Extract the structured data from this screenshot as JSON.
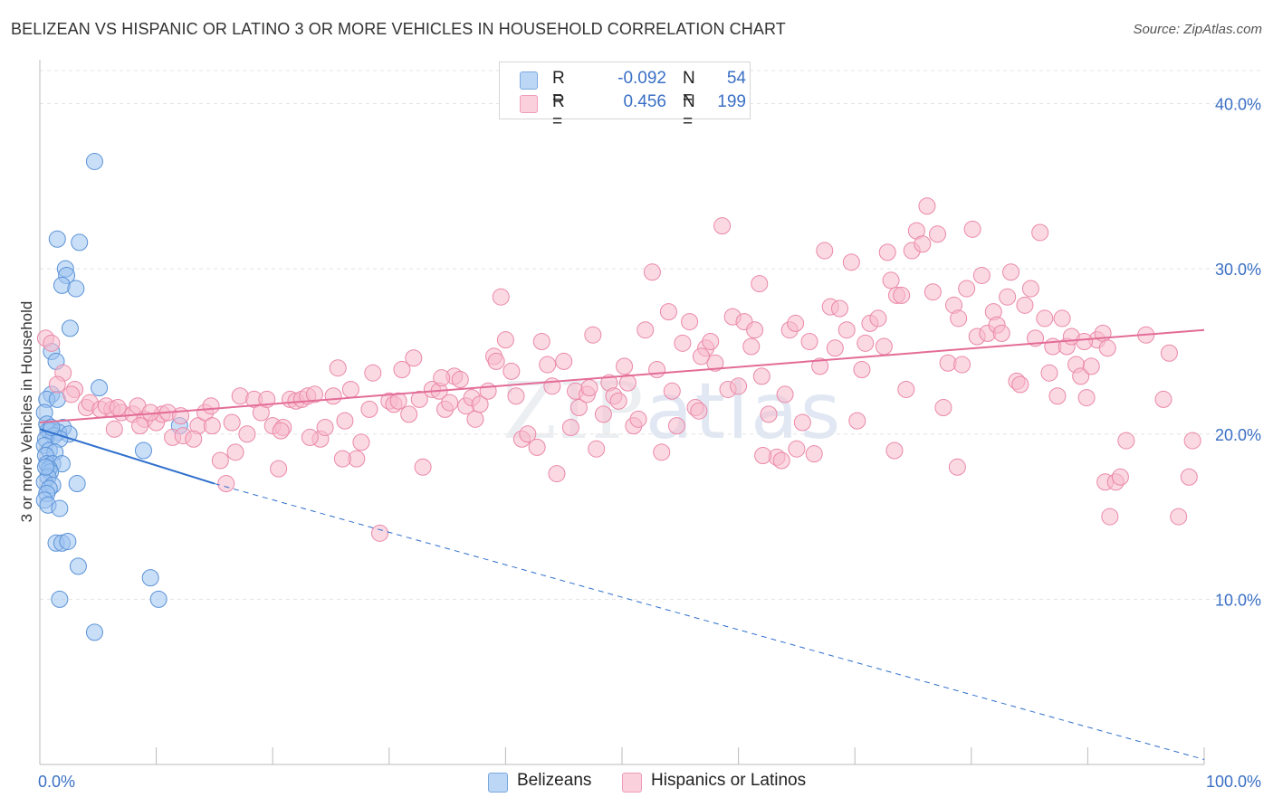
{
  "title": "BELIZEAN VS HISPANIC OR LATINO 3 OR MORE VEHICLES IN HOUSEHOLD CORRELATION CHART",
  "source": "Source: ZipAtlas.com",
  "watermark": {
    "zip": "ZIP",
    "atlas": "atlas"
  },
  "legend": {
    "rows": [
      {
        "r_label": "R =",
        "r_value": "-0.092",
        "n_label": "N =",
        "n_value": "54",
        "color": "#9dc3f0"
      },
      {
        "r_label": "R =",
        "r_value": "0.456",
        "n_label": "N =",
        "n_value": "199",
        "color": "#f7b9cc"
      }
    ]
  },
  "bottom_legend": [
    {
      "label": "Belizeans",
      "color": "#9dc3f0"
    },
    {
      "label": "Hispanics or Latinos",
      "color": "#f7b9cc"
    }
  ],
  "chart_data": {
    "type": "scatter",
    "title": "BELIZEAN VS HISPANIC OR LATINO 3 OR MORE VEHICLES IN HOUSEHOLD CORRELATION CHART",
    "xlabel": "",
    "ylabel": "3 or more Vehicles in Household",
    "xlim": [
      0,
      100
    ],
    "ylim": [
      0,
      42
    ],
    "x_tick_labels": [
      {
        "value": 0,
        "label": "0.0%"
      },
      {
        "value": 100,
        "label": "100.0%"
      }
    ],
    "y_tick_labels": [
      {
        "value": 10,
        "label": "10.0%"
      },
      {
        "value": 20,
        "label": "20.0%"
      },
      {
        "value": 30,
        "label": "30.0%"
      },
      {
        "value": 40,
        "label": "40.0%"
      }
    ],
    "series": [
      {
        "name": "Belizeans",
        "color": "#9dc3f0",
        "stroke": "#5b93d8",
        "r": -0.092,
        "n": 54,
        "trend": {
          "x0": 0,
          "y0": 20.3,
          "x1": 15,
          "y1": 17.0,
          "dash_to_x": 100,
          "dash_to_y": 0.3,
          "color": "#2f6fcc"
        },
        "points": [
          [
            4.7,
            36.5
          ],
          [
            1.5,
            31.8
          ],
          [
            3.4,
            31.6
          ],
          [
            2.2,
            30.0
          ],
          [
            2.3,
            29.6
          ],
          [
            1.9,
            29.0
          ],
          [
            3.1,
            28.8
          ],
          [
            2.6,
            26.4
          ],
          [
            1.0,
            25.0
          ],
          [
            1.4,
            24.4
          ],
          [
            5.1,
            22.8
          ],
          [
            1.0,
            22.4
          ],
          [
            0.6,
            22.1
          ],
          [
            1.5,
            22.1
          ],
          [
            0.4,
            21.3
          ],
          [
            0.6,
            20.6
          ],
          [
            12.0,
            20.5
          ],
          [
            2.0,
            20.4
          ],
          [
            0.7,
            20.2
          ],
          [
            0.9,
            20.2
          ],
          [
            1.6,
            20.1
          ],
          [
            2.5,
            20.0
          ],
          [
            1.2,
            19.9
          ],
          [
            0.5,
            19.7
          ],
          [
            1.7,
            19.7
          ],
          [
            0.4,
            19.3
          ],
          [
            8.9,
            19.0
          ],
          [
            0.8,
            19.0
          ],
          [
            1.3,
            18.9
          ],
          [
            0.5,
            18.7
          ],
          [
            0.6,
            18.2
          ],
          [
            1.1,
            18.2
          ],
          [
            1.9,
            18.2
          ],
          [
            0.8,
            17.9
          ],
          [
            0.9,
            17.7
          ],
          [
            0.7,
            17.4
          ],
          [
            0.4,
            17.1
          ],
          [
            3.2,
            17.0
          ],
          [
            1.1,
            16.9
          ],
          [
            0.8,
            16.7
          ],
          [
            0.6,
            16.4
          ],
          [
            0.4,
            16.0
          ],
          [
            0.7,
            15.7
          ],
          [
            1.7,
            15.5
          ],
          [
            1.4,
            13.4
          ],
          [
            1.9,
            13.4
          ],
          [
            2.4,
            13.5
          ],
          [
            3.3,
            12.0
          ],
          [
            9.5,
            11.3
          ],
          [
            1.7,
            10.0
          ],
          [
            10.2,
            10.0
          ],
          [
            4.7,
            8.0
          ],
          [
            1.0,
            20.4
          ],
          [
            0.5,
            18.0
          ]
        ]
      },
      {
        "name": "Hispanics or Latinos",
        "color": "#f7b9cc",
        "stroke": "#ea88a8",
        "r": 0.456,
        "n": 199,
        "trend": {
          "x0": 0,
          "y0": 20.7,
          "x1": 100,
          "y1": 26.3,
          "color": "#e36c97"
        },
        "points": [
          [
            0.5,
            25.8
          ],
          [
            1.0,
            25.5
          ],
          [
            2.0,
            23.7
          ],
          [
            1.5,
            23.0
          ],
          [
            3.0,
            22.7
          ],
          [
            2.7,
            22.4
          ],
          [
            4.0,
            21.6
          ],
          [
            4.3,
            21.9
          ],
          [
            5.2,
            21.5
          ],
          [
            6.2,
            21.5
          ],
          [
            5.7,
            21.7
          ],
          [
            7.0,
            21.3
          ],
          [
            6.4,
            20.3
          ],
          [
            8.0,
            21.2
          ],
          [
            8.4,
            21.7
          ],
          [
            9.0,
            20.9
          ],
          [
            10.0,
            20.7
          ],
          [
            10.5,
            21.2
          ],
          [
            11.0,
            21.3
          ],
          [
            11.4,
            19.8
          ],
          [
            12.3,
            19.9
          ],
          [
            12.1,
            21.1
          ],
          [
            13.6,
            20.5
          ],
          [
            14.2,
            21.3
          ],
          [
            14.7,
            21.7
          ],
          [
            15.5,
            18.4
          ],
          [
            16.0,
            17.0
          ],
          [
            16.5,
            20.7
          ],
          [
            17.2,
            22.3
          ],
          [
            17.8,
            20.0
          ],
          [
            18.4,
            22.1
          ],
          [
            19.0,
            21.3
          ],
          [
            19.5,
            22.1
          ],
          [
            20.0,
            20.5
          ],
          [
            20.5,
            17.9
          ],
          [
            20.9,
            20.4
          ],
          [
            21.5,
            22.1
          ],
          [
            22.0,
            22.0
          ],
          [
            22.5,
            22.1
          ],
          [
            23.0,
            22.3
          ],
          [
            23.6,
            22.4
          ],
          [
            24.1,
            19.7
          ],
          [
            24.5,
            20.4
          ],
          [
            25.2,
            22.3
          ],
          [
            25.6,
            24.0
          ],
          [
            26.2,
            20.8
          ],
          [
            26.7,
            22.7
          ],
          [
            27.2,
            18.5
          ],
          [
            27.6,
            19.5
          ],
          [
            28.3,
            21.5
          ],
          [
            28.6,
            23.7
          ],
          [
            29.2,
            14.0
          ],
          [
            30.0,
            22.0
          ],
          [
            30.4,
            21.8
          ],
          [
            31.1,
            23.9
          ],
          [
            31.7,
            21.2
          ],
          [
            32.1,
            24.6
          ],
          [
            32.6,
            22.1
          ],
          [
            32.9,
            18.0
          ],
          [
            33.7,
            22.7
          ],
          [
            34.3,
            22.6
          ],
          [
            34.8,
            21.5
          ],
          [
            35.2,
            21.9
          ],
          [
            35.6,
            23.5
          ],
          [
            36.1,
            23.3
          ],
          [
            36.6,
            21.7
          ],
          [
            37.1,
            22.2
          ],
          [
            37.4,
            20.9
          ],
          [
            37.8,
            21.8
          ],
          [
            38.5,
            22.6
          ],
          [
            39.0,
            24.7
          ],
          [
            39.2,
            24.4
          ],
          [
            39.6,
            28.3
          ],
          [
            40.0,
            25.7
          ],
          [
            40.5,
            23.8
          ],
          [
            40.9,
            22.3
          ],
          [
            41.4,
            19.7
          ],
          [
            41.9,
            20.0
          ],
          [
            42.7,
            19.2
          ],
          [
            43.1,
            25.6
          ],
          [
            43.6,
            24.2
          ],
          [
            44.0,
            22.9
          ],
          [
            44.4,
            17.6
          ],
          [
            45.0,
            24.4
          ],
          [
            45.6,
            20.4
          ],
          [
            46.0,
            22.6
          ],
          [
            46.3,
            21.6
          ],
          [
            47.0,
            22.4
          ],
          [
            47.5,
            26.0
          ],
          [
            47.8,
            19.1
          ],
          [
            48.4,
            21.2
          ],
          [
            48.9,
            23.1
          ],
          [
            49.3,
            22.3
          ],
          [
            49.7,
            22.0
          ],
          [
            50.2,
            24.1
          ],
          [
            50.5,
            23.1
          ],
          [
            51.0,
            20.5
          ],
          [
            51.4,
            20.9
          ],
          [
            52.0,
            26.3
          ],
          [
            52.6,
            29.8
          ],
          [
            53.0,
            23.9
          ],
          [
            53.4,
            18.9
          ],
          [
            54.0,
            27.4
          ],
          [
            54.3,
            22.6
          ],
          [
            54.7,
            20.5
          ],
          [
            55.2,
            25.5
          ],
          [
            55.8,
            26.8
          ],
          [
            56.3,
            21.6
          ],
          [
            56.6,
            21.4
          ],
          [
            57.2,
            25.2
          ],
          [
            57.6,
            25.6
          ],
          [
            58.0,
            24.3
          ],
          [
            58.6,
            32.6
          ],
          [
            59.1,
            22.7
          ],
          [
            59.5,
            27.1
          ],
          [
            60.0,
            22.9
          ],
          [
            60.5,
            26.8
          ],
          [
            61.1,
            25.3
          ],
          [
            61.4,
            26.3
          ],
          [
            62.0,
            23.5
          ],
          [
            62.6,
            21.2
          ],
          [
            63.3,
            18.6
          ],
          [
            63.7,
            18.4
          ],
          [
            64.0,
            22.4
          ],
          [
            64.4,
            26.3
          ],
          [
            64.9,
            26.7
          ],
          [
            65.5,
            20.7
          ],
          [
            66.1,
            25.6
          ],
          [
            66.5,
            18.8
          ],
          [
            67.0,
            24.1
          ],
          [
            67.4,
            31.1
          ],
          [
            67.9,
            27.7
          ],
          [
            68.3,
            25.2
          ],
          [
            68.7,
            27.6
          ],
          [
            69.3,
            26.3
          ],
          [
            69.7,
            30.4
          ],
          [
            70.2,
            20.8
          ],
          [
            70.6,
            23.9
          ],
          [
            70.9,
            25.5
          ],
          [
            71.3,
            26.7
          ],
          [
            72.0,
            27.0
          ],
          [
            72.5,
            25.3
          ],
          [
            72.8,
            31.0
          ],
          [
            73.1,
            29.3
          ],
          [
            73.6,
            28.4
          ],
          [
            74.0,
            28.4
          ],
          [
            74.4,
            22.7
          ],
          [
            74.9,
            31.1
          ],
          [
            75.3,
            32.3
          ],
          [
            75.8,
            31.5
          ],
          [
            76.2,
            33.8
          ],
          [
            76.7,
            28.6
          ],
          [
            77.1,
            32.1
          ],
          [
            77.6,
            21.6
          ],
          [
            78.0,
            24.3
          ],
          [
            78.5,
            27.8
          ],
          [
            78.9,
            27.0
          ],
          [
            79.2,
            24.2
          ],
          [
            79.6,
            28.8
          ],
          [
            80.1,
            32.4
          ],
          [
            80.5,
            25.9
          ],
          [
            80.9,
            29.6
          ],
          [
            81.4,
            26.1
          ],
          [
            81.9,
            27.4
          ],
          [
            82.2,
            26.6
          ],
          [
            82.6,
            26.1
          ],
          [
            83.1,
            28.3
          ],
          [
            83.4,
            29.8
          ],
          [
            83.9,
            23.2
          ],
          [
            84.2,
            23.0
          ],
          [
            84.6,
            27.8
          ],
          [
            85.1,
            28.8
          ],
          [
            85.5,
            25.8
          ],
          [
            85.9,
            32.2
          ],
          [
            86.3,
            27.0
          ],
          [
            86.7,
            23.7
          ],
          [
            87.0,
            25.3
          ],
          [
            87.4,
            22.3
          ],
          [
            87.8,
            27.0
          ],
          [
            88.2,
            25.3
          ],
          [
            88.6,
            25.9
          ],
          [
            89.0,
            24.2
          ],
          [
            89.4,
            23.5
          ],
          [
            89.9,
            22.2
          ],
          [
            90.3,
            24.1
          ],
          [
            90.8,
            25.7
          ],
          [
            91.3,
            26.1
          ],
          [
            91.5,
            17.1
          ],
          [
            91.9,
            15.0
          ],
          [
            92.4,
            17.1
          ],
          [
            92.8,
            17.4
          ],
          [
            93.3,
            19.6
          ],
          [
            91.7,
            25.2
          ],
          [
            89.7,
            25.6
          ],
          [
            78.8,
            18.0
          ],
          [
            73.4,
            19.0
          ],
          [
            62.1,
            18.7
          ],
          [
            65.0,
            19.1
          ],
          [
            30.8,
            22.0
          ],
          [
            20.7,
            20.2
          ],
          [
            23.2,
            19.8
          ],
          [
            34.5,
            23.4
          ],
          [
            14.8,
            20.5
          ],
          [
            8.6,
            20.5
          ],
          [
            6.7,
            21.6
          ],
          [
            9.5,
            21.3
          ],
          [
            13.2,
            19.7
          ],
          [
            16.8,
            18.9
          ],
          [
            26.0,
            18.5
          ],
          [
            47.2,
            22.8
          ],
          [
            56.8,
            24.7
          ],
          [
            61.8,
            29.1
          ],
          [
            95.0,
            26.0
          ],
          [
            97.0,
            24.9
          ],
          [
            99.0,
            19.6
          ],
          [
            98.7,
            17.4
          ],
          [
            97.8,
            15.0
          ],
          [
            96.5,
            22.1
          ]
        ]
      }
    ]
  }
}
